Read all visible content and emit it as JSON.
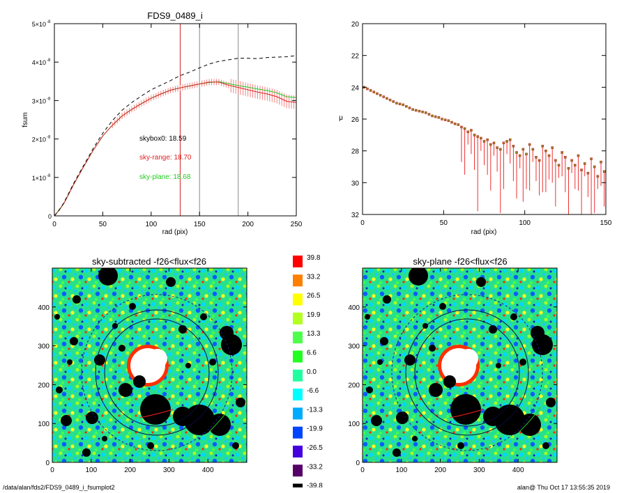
{
  "chart_data": [
    {
      "type": "line",
      "title": "FDS9_0489_i",
      "xlabel": "rad (pix)",
      "ylabel": "fsum",
      "xlim": [
        0,
        250
      ],
      "ylim": [
        0,
        5e-08
      ],
      "xticks": [
        "0",
        "50",
        "100",
        "150",
        "200",
        "250"
      ],
      "yticks": [
        {
          "mant": "0",
          "exp": ""
        },
        {
          "mant": "1×10",
          "exp": "-8"
        },
        {
          "mant": "2×10",
          "exp": "-8"
        },
        {
          "mant": "3×10",
          "exp": "-8"
        },
        {
          "mant": "4×10",
          "exp": "-8"
        },
        {
          "mant": "5×10",
          "exp": "-8"
        }
      ],
      "vlines": [
        {
          "x": 130,
          "color": "#d62020"
        },
        {
          "x": 150,
          "color": "#888888"
        },
        {
          "x": 190,
          "color": "#888888"
        }
      ],
      "annotations": [
        {
          "text": "skybox0: 18.59",
          "color": "#000000"
        },
        {
          "text": "sky-range: 18.70",
          "color": "#e02020"
        },
        {
          "text": "sky-plane: 18.68",
          "color": "#22cc22"
        }
      ],
      "series": [
        {
          "style": "dashed",
          "color": "#000000",
          "x": [
            0,
            5,
            10,
            20,
            30,
            40,
            50,
            60,
            70,
            80,
            90,
            100,
            110,
            120,
            130,
            140,
            150,
            160,
            170,
            180,
            190,
            200,
            210,
            220,
            230,
            240,
            250
          ],
          "y": [
            0,
            0.15,
            0.35,
            0.85,
            1.3,
            1.75,
            2.15,
            2.48,
            2.75,
            2.95,
            3.12,
            3.28,
            3.4,
            3.52,
            3.65,
            3.74,
            3.85,
            3.95,
            4.02,
            4.06,
            4.1,
            4.1,
            4.09,
            4.12,
            4.13,
            4.14,
            4.17
          ]
        },
        {
          "style": "solid",
          "color": "#d62020",
          "x": [
            0,
            5,
            10,
            20,
            30,
            40,
            50,
            60,
            70,
            80,
            90,
            100,
            110,
            120,
            130,
            140,
            150,
            160,
            170,
            180,
            190,
            200,
            210,
            220,
            230,
            240,
            250
          ],
          "y": [
            0,
            0.15,
            0.33,
            0.82,
            1.27,
            1.7,
            2.08,
            2.36,
            2.6,
            2.77,
            2.92,
            3.06,
            3.17,
            3.27,
            3.33,
            3.38,
            3.43,
            3.48,
            3.48,
            3.4,
            3.34,
            3.28,
            3.22,
            3.17,
            3.1,
            2.98,
            2.95
          ]
        },
        {
          "style": "solid",
          "color": "#22cc22",
          "x": [
            0,
            10,
            20,
            30,
            40,
            50,
            60,
            70,
            80,
            90,
            100,
            110,
            120,
            130,
            140,
            150,
            160,
            170,
            180,
            190,
            200,
            210,
            220,
            230,
            240,
            250
          ],
          "y": [
            0,
            0.33,
            0.82,
            1.27,
            1.7,
            2.08,
            2.36,
            2.6,
            2.77,
            2.92,
            3.06,
            3.17,
            3.27,
            3.33,
            3.38,
            3.43,
            3.47,
            3.49,
            3.44,
            3.39,
            3.35,
            3.3,
            3.26,
            3.2,
            3.1,
            3.08
          ]
        }
      ],
      "errorbar_halfwidth": 0.08
    },
    {
      "type": "scatter",
      "xlabel": "rad (pix)",
      "ylabel": "μ",
      "xlim": [
        0,
        150
      ],
      "ylim": [
        32,
        20
      ],
      "xticks": [
        "0",
        "50",
        "100",
        "150"
      ],
      "yticks": [
        "20",
        "22",
        "24",
        "26",
        "28",
        "30",
        "32"
      ],
      "points": [
        [
          1,
          24.0
        ],
        [
          3,
          24.1
        ],
        [
          5,
          24.2
        ],
        [
          7,
          24.3
        ],
        [
          9,
          24.4
        ],
        [
          11,
          24.5
        ],
        [
          13,
          24.6
        ],
        [
          15,
          24.7
        ],
        [
          17,
          24.8
        ],
        [
          19,
          24.9
        ],
        [
          21,
          25.0
        ],
        [
          23,
          25.05
        ],
        [
          25,
          25.1
        ],
        [
          27,
          25.2
        ],
        [
          29,
          25.3
        ],
        [
          31,
          25.4
        ],
        [
          33,
          25.45
        ],
        [
          35,
          25.5
        ],
        [
          37,
          25.55
        ],
        [
          39,
          25.6
        ],
        [
          41,
          25.7
        ],
        [
          43,
          25.8
        ],
        [
          45,
          25.85
        ],
        [
          47,
          25.9
        ],
        [
          49,
          26.0
        ],
        [
          51,
          26.05
        ],
        [
          53,
          26.1
        ],
        [
          55,
          26.2
        ],
        [
          57,
          26.3
        ],
        [
          59,
          26.35
        ],
        [
          61,
          26.5
        ],
        [
          63,
          26.6
        ],
        [
          65,
          26.8
        ],
        [
          67,
          26.7
        ],
        [
          69,
          27.0
        ],
        [
          71,
          27.1
        ],
        [
          73,
          27.2
        ],
        [
          75,
          27.4
        ],
        [
          77,
          27.3
        ],
        [
          79,
          27.6
        ],
        [
          81,
          27.5
        ],
        [
          83,
          27.8
        ],
        [
          85,
          27.9
        ],
        [
          87,
          27.5
        ],
        [
          89,
          27.4
        ],
        [
          91,
          27.3
        ],
        [
          93,
          27.7
        ],
        [
          95,
          28.1
        ],
        [
          97,
          28.3
        ],
        [
          99,
          27.9
        ],
        [
          101,
          28.2
        ],
        [
          103,
          27.6
        ],
        [
          105,
          27.9
        ],
        [
          107,
          28.4
        ],
        [
          109,
          28.6
        ],
        [
          111,
          27.7
        ],
        [
          113,
          28.0
        ],
        [
          115,
          28.3
        ],
        [
          117,
          27.8
        ],
        [
          119,
          28.6
        ],
        [
          121,
          28.9
        ],
        [
          123,
          28.1
        ],
        [
          125,
          28.4
        ],
        [
          127,
          29.1
        ],
        [
          129,
          28.6
        ],
        [
          131,
          28.9
        ],
        [
          133,
          28.3
        ],
        [
          135,
          29.2
        ],
        [
          137,
          28.8
        ],
        [
          139,
          29.4
        ],
        [
          141,
          28.5
        ],
        [
          143,
          29.0
        ],
        [
          145,
          29.6
        ],
        [
          147,
          28.7
        ],
        [
          149,
          29.3
        ]
      ]
    },
    {
      "type": "heatmap",
      "title": "sky-subtracted -f26<flux<f26",
      "xlim": [
        0,
        500
      ],
      "ylim": [
        0,
        500
      ],
      "xticks": [
        "0",
        "100",
        "200",
        "300",
        "400"
      ],
      "yticks": [
        "0",
        "100",
        "200",
        "300",
        "400"
      ]
    },
    {
      "type": "heatmap",
      "title": "sky-plane -f26<flux<f26",
      "xlim": [
        0,
        500
      ],
      "ylim": [
        0,
        500
      ],
      "xticks": [
        "0",
        "100",
        "200",
        "300",
        "400"
      ],
      "yticks": [
        "0",
        "100",
        "200",
        "300",
        "400"
      ]
    }
  ],
  "colorbar": {
    "levels": [
      "39.8",
      "33.2",
      "26.5",
      "19.9",
      "13.3",
      "6.6",
      "0.0",
      "-6.6",
      "-13.3",
      "-19.9",
      "-26.5",
      "-33.2",
      "-39.8"
    ],
    "colors": [
      "#ff0000",
      "#ff7f00",
      "#ffff00",
      "#b2ff20",
      "#4cff4c",
      "#20ff20",
      "#20ff9f",
      "#00ffff",
      "#00aaff",
      "#0044ff",
      "#4400dd",
      "#550066",
      "#000000"
    ]
  },
  "footer": {
    "left": "/data/alan/fds2/FDS9_0489_i_fsumplot2",
    "right": "alan@  Thu Oct 17 13:55:35 2019"
  }
}
